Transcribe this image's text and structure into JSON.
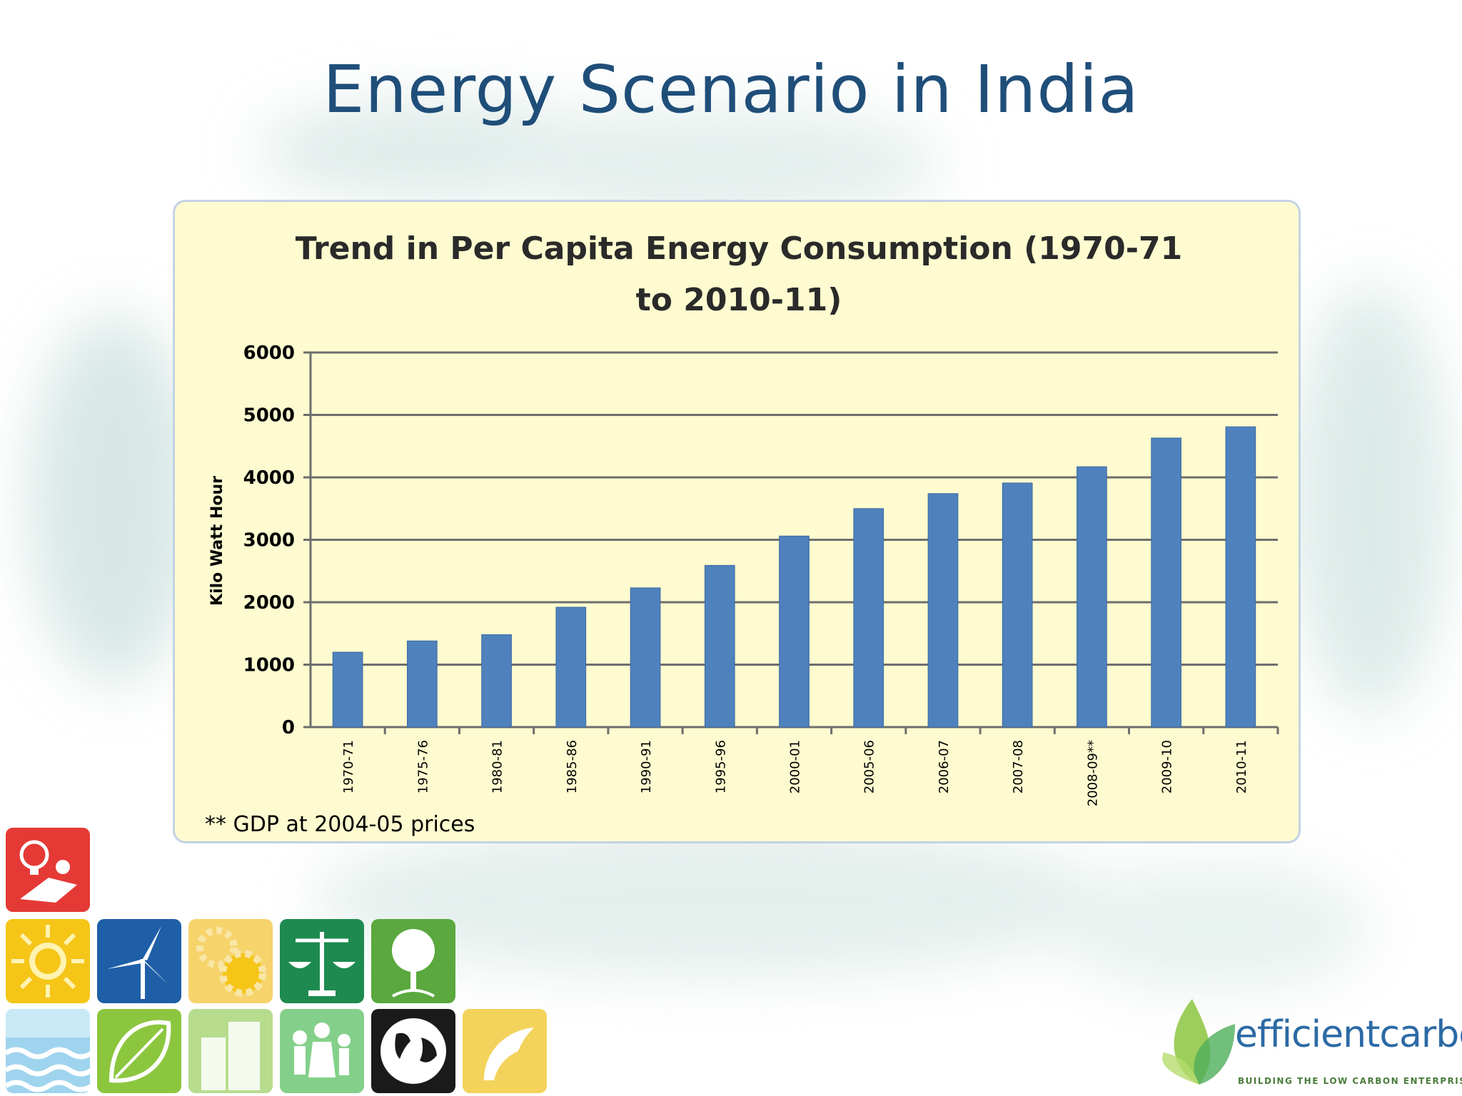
{
  "slide": {
    "title": "Energy Scenario in India"
  },
  "chart_data": {
    "type": "bar",
    "title_lines": [
      "Trend in Per Capita Energy Consumption (1970-71",
      "to 2010-11)"
    ],
    "ylabel": "Kilo Watt Hour",
    "xlabel": "",
    "categories": [
      "1970-71",
      "1975-76",
      "1980-81",
      "1985-86",
      "1990-91",
      "1995-96",
      "2000-01",
      "2005-06",
      "2006-07",
      "2007-08",
      "2008-09**",
      "2009-10",
      "2010-11"
    ],
    "values": [
      1200,
      1380,
      1480,
      1920,
      2230,
      2590,
      3060,
      3500,
      3740,
      3910,
      4170,
      4630,
      4810
    ],
    "ylim": [
      0,
      6000
    ],
    "yticks": [
      0,
      1000,
      2000,
      3000,
      4000,
      5000,
      6000
    ],
    "grid": true,
    "legend": "none",
    "bar_color": "#4f81bd",
    "footnote": "** GDP at 2004-05 prices"
  },
  "brand": {
    "name": "efficientcarbon",
    "tagline": "BUILDING THE LOW CARBON ENTERPRISE"
  },
  "tiles": [
    {
      "name": "worker-bulb-icon",
      "color": "#e53935"
    },
    {
      "name": "sun-icon",
      "color": "#f5c518"
    },
    {
      "name": "wind-turbine-icon",
      "color": "#1f5fa8"
    },
    {
      "name": "gears-icon",
      "color": "#f6d36b"
    },
    {
      "name": "scales-icon",
      "color": "#1e8a4f"
    },
    {
      "name": "tree-icon",
      "color": "#5aa83e"
    },
    {
      "name": "water-waves-icon",
      "color": "#9fd4ee"
    },
    {
      "name": "leaf-icon",
      "color": "#8cc63f"
    },
    {
      "name": "buildings-icon",
      "color": "#b7dc8e"
    },
    {
      "name": "people-icon",
      "color": "#84d08a"
    },
    {
      "name": "globe-icon",
      "color": "#1a1a1a"
    },
    {
      "name": "swoosh-icon",
      "color": "#f3d35b"
    }
  ]
}
